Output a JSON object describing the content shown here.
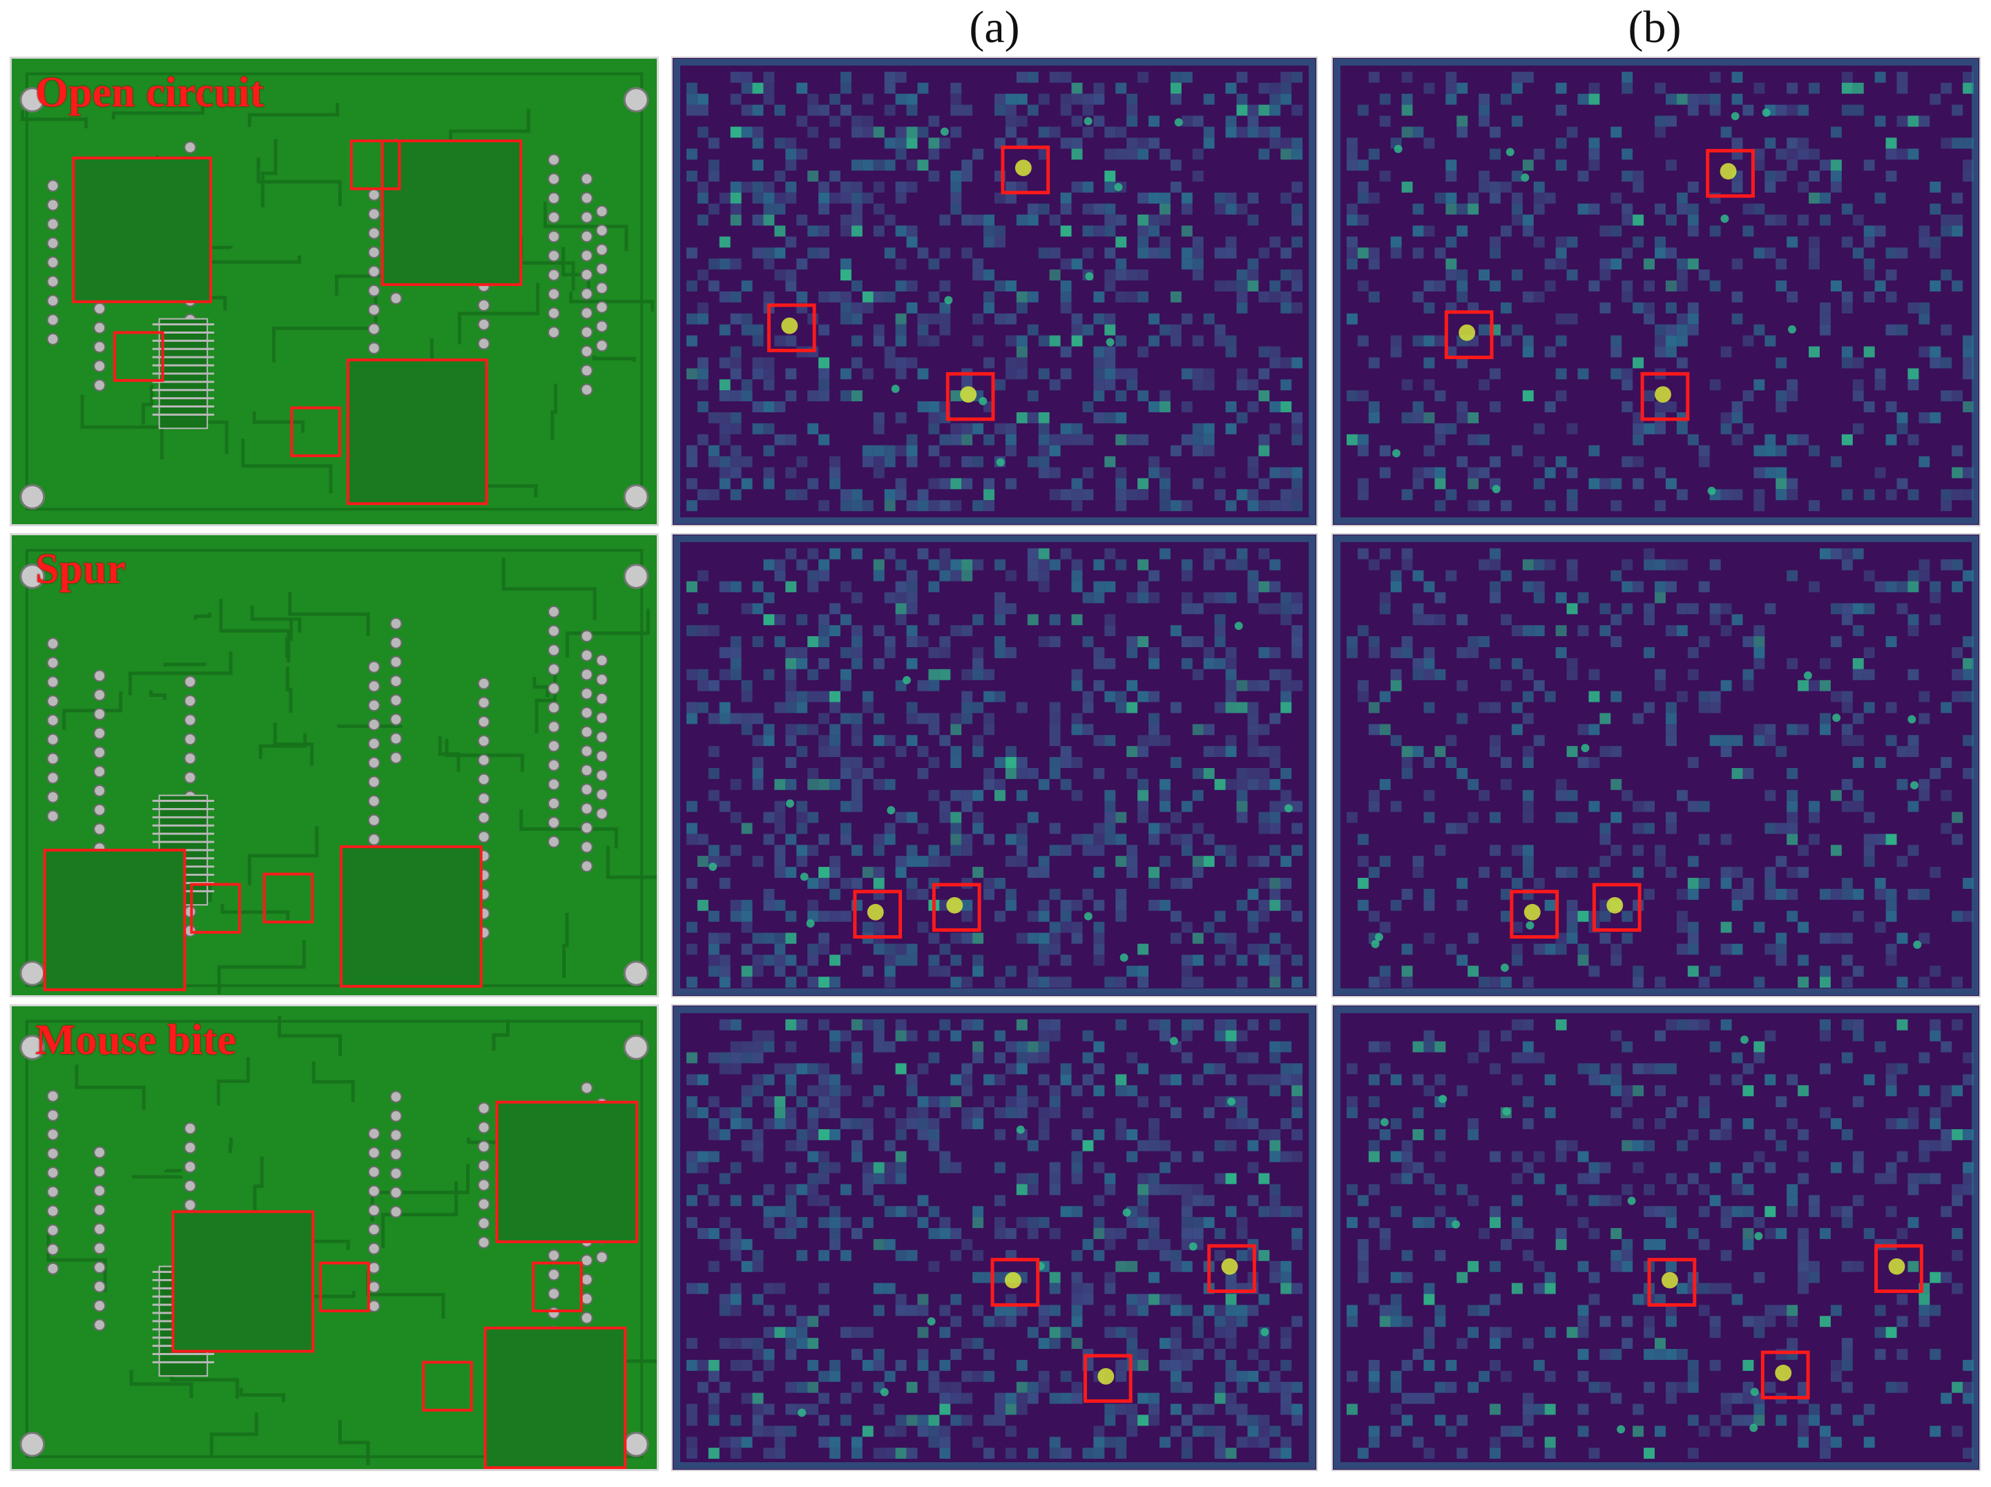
{
  "column_labels": {
    "a": "(a)",
    "b": "(b)"
  },
  "rows": [
    {
      "label": "Open circuit"
    },
    {
      "label": "Spur"
    },
    {
      "label": "Mouse bite"
    }
  ],
  "colors": {
    "pcb_green": "#1e8a22",
    "trace_green": "#16731b",
    "pad_gray": "#b9b9b9",
    "heat_background": "#3b0f5a",
    "heat_mid": "#2a6f8e",
    "heat_high": "#2fb98a",
    "heat_peak": "#d7e83a",
    "marker_red": "#ff1a1a"
  }
}
